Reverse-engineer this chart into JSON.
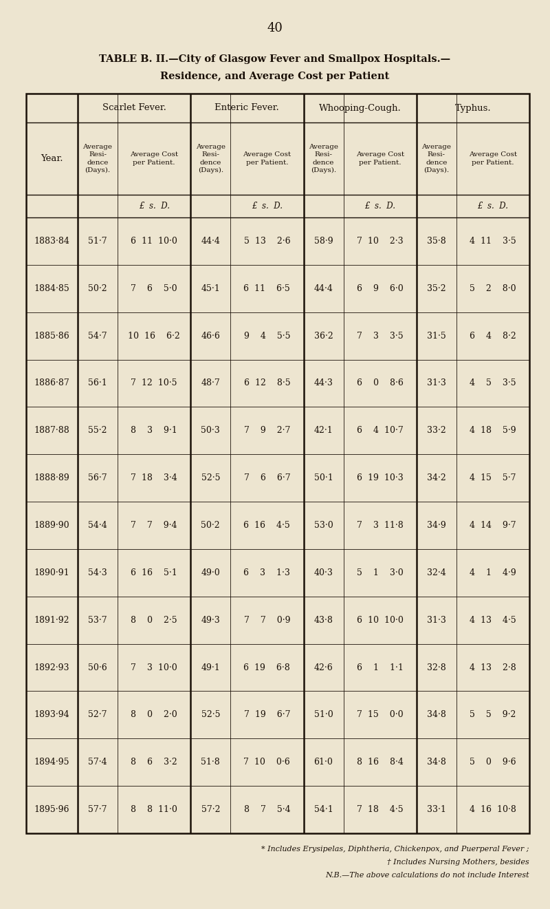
{
  "page_number": "40",
  "title_line1": "TABLE B. II.—City of Glasgow Fever and Smallpox Hospitals.—",
  "title_line2": "Residence, and Average Cost per Patient",
  "background_color": "#ede5d0",
  "text_color": "#1a1008",
  "section_headers": [
    "Scarlet Fever.",
    "Enteric Fever.",
    "Whooping-Cough.",
    "Typhus."
  ],
  "years": [
    "1883·84",
    "1884·85",
    "1885·86",
    "1886·87",
    "1887·88",
    "1888·89",
    "1889·90",
    "1890·91",
    "1891·92",
    "1892·93",
    "1893·94",
    "1894·95",
    "1895·96"
  ],
  "data": [
    [
      "51·7",
      "6  11  10·0",
      "44·4",
      "5  13    2·6",
      "58·9",
      "7  10    2·3",
      "35·8",
      "4  11    3·5"
    ],
    [
      "50·2",
      "7    6    5·0",
      "45·1",
      "6  11    6·5",
      "44·4",
      "6    9    6·0",
      "35·2",
      "5    2    8·0"
    ],
    [
      "54·7",
      "10  16    6·2",
      "46·6",
      "9    4    5·5",
      "36·2",
      "7    3    3·5",
      "31·5",
      "6    4    8·2"
    ],
    [
      "56·1",
      "7  12  10·5",
      "48·7",
      "6  12    8·5",
      "44·3",
      "6    0    8·6",
      "31·3",
      "4    5    3·5"
    ],
    [
      "55·2",
      "8    3    9·1",
      "50·3",
      "7    9    2·7",
      "42·1",
      "6    4  10·7",
      "33·2",
      "4  18    5·9"
    ],
    [
      "56·7",
      "7  18    3·4",
      "52·5",
      "7    6    6·7",
      "50·1",
      "6  19  10·3",
      "34·2",
      "4  15    5·7"
    ],
    [
      "54·4",
      "7    7    9·4",
      "50·2",
      "6  16    4·5",
      "53·0",
      "7    3  11·8",
      "34·9",
      "4  14    9·7"
    ],
    [
      "54·3",
      "6  16    5·1",
      "49·0",
      "6    3    1·3",
      "40·3",
      "5    1    3·0",
      "32·4",
      "4    1    4·9"
    ],
    [
      "53·7",
      "8    0    2·5",
      "49·3",
      "7    7    0·9",
      "43·8",
      "6  10  10·0",
      "31·3",
      "4  13    4·5"
    ],
    [
      "50·6",
      "7    3  10·0",
      "49·1",
      "6  19    6·8",
      "42·6",
      "6    1    1·1",
      "32·8",
      "4  13    2·8"
    ],
    [
      "52·7",
      "8    0    2·0",
      "52·5",
      "7  19    6·7",
      "51·0",
      "7  15    0·0",
      "34·8",
      "5    5    9·2"
    ],
    [
      "57·4",
      "8    6    3·2",
      "51·8",
      "7  10    0·6",
      "61·0",
      "8  16    8·4",
      "34·8",
      "5    0    9·6"
    ],
    [
      "57·7",
      "8    8  11·0",
      "57·2",
      "8    7    5·4",
      "54·1",
      "7  18    4·5",
      "33·1",
      "4  16  10·8"
    ]
  ],
  "footnote1": "* Includes Erysipelas, Diphtheria, Chickenpox, and Puerperal Fever ;",
  "footnote2": "† Includes Nursing Mothers, besides",
  "footnote3": "N.B.—The above calculations do not include Interest"
}
